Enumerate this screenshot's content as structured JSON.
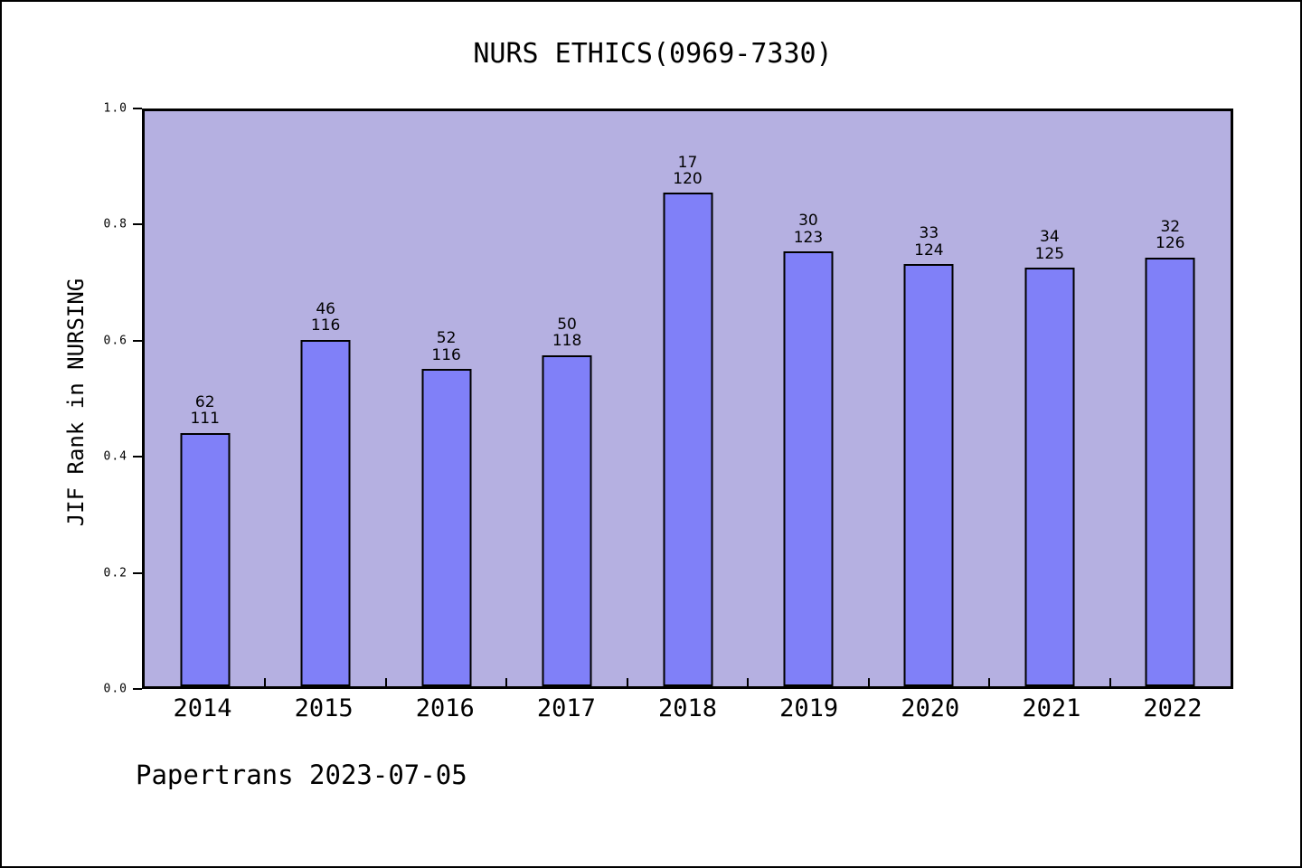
{
  "title": "NURS ETHICS(0969-7330)",
  "footer": "Papertrans 2023-07-05",
  "chart_data": {
    "type": "bar",
    "title": "NURS ETHICS(0969-7330)",
    "xlabel": "",
    "ylabel": "JIF Rank in NURSING",
    "categories": [
      "2014",
      "2015",
      "2016",
      "2017",
      "2018",
      "2019",
      "2020",
      "2021",
      "2022"
    ],
    "values": [
      0.441,
      0.603,
      0.552,
      0.576,
      0.858,
      0.756,
      0.734,
      0.728,
      0.746
    ],
    "bar_labels": [
      [
        "62",
        "111"
      ],
      [
        "46",
        "116"
      ],
      [
        "52",
        "116"
      ],
      [
        "50",
        "118"
      ],
      [
        "17",
        "120"
      ],
      [
        "30",
        "123"
      ],
      [
        "33",
        "124"
      ],
      [
        "34",
        "125"
      ],
      [
        "32",
        "126"
      ]
    ],
    "ylim": [
      0.0,
      1.0
    ],
    "yticks": [
      "0.0",
      "0.2",
      "0.4",
      "0.6",
      "0.8",
      "1.0"
    ],
    "grid": false,
    "legend": false,
    "colors": {
      "bar_fill": "#8080f8",
      "bar_edge": "#000000",
      "plot_bg": "#b5b0e1",
      "page_bg": "#ffffff",
      "text": "#000000"
    }
  }
}
